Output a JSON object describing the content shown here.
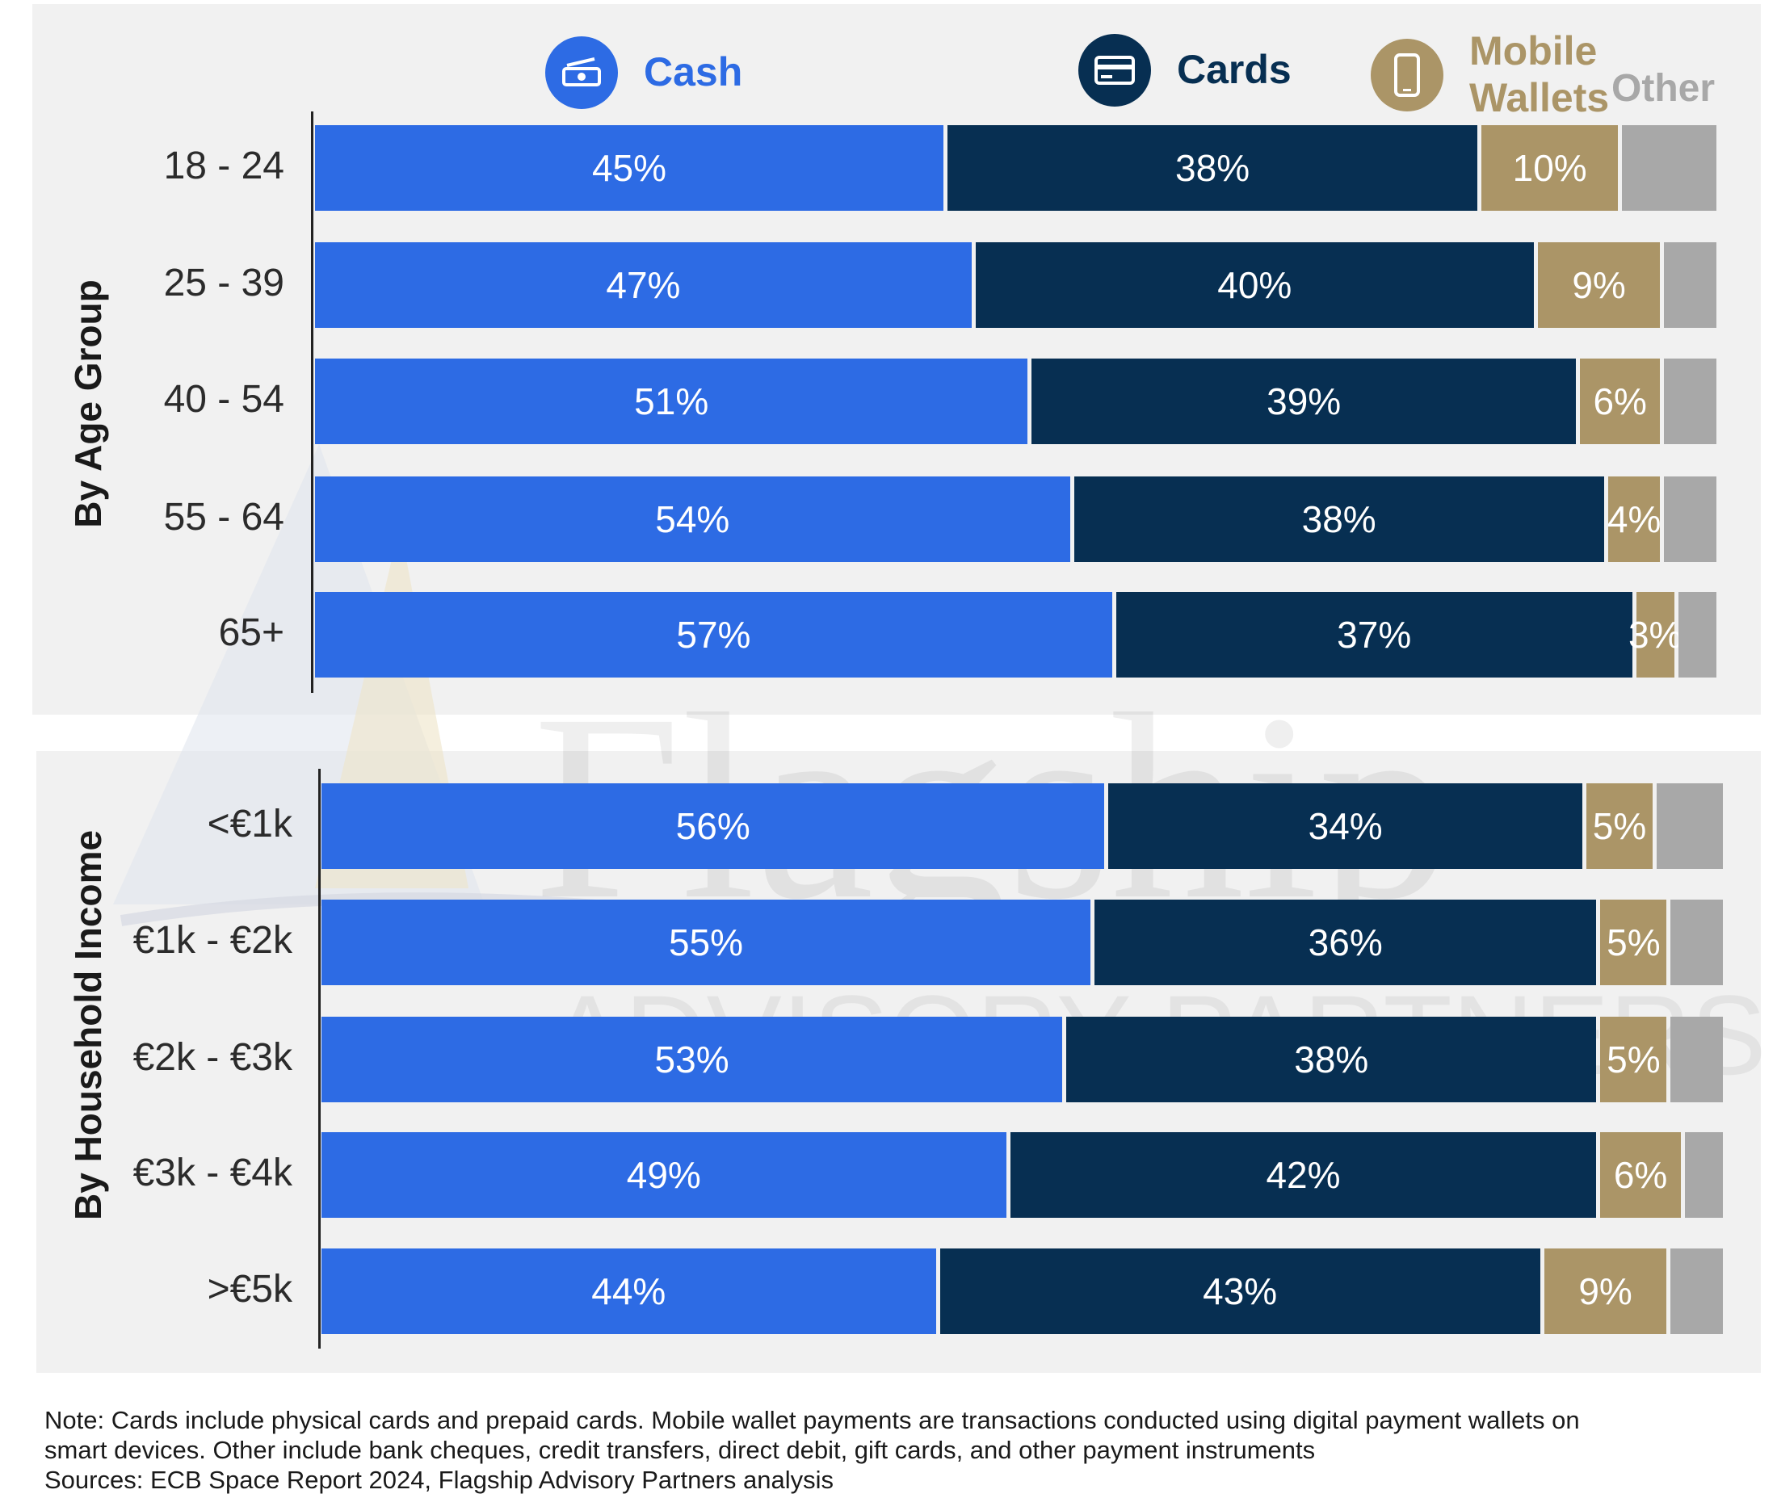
{
  "legend": {
    "cash": {
      "label": "Cash",
      "color": "#2d6be4",
      "icon": "cash-icon"
    },
    "cards": {
      "label": "Cards",
      "color": "#072f52",
      "icon": "card-icon"
    },
    "mobile": {
      "label_line1": "Mobile",
      "label_line2": "Wallets",
      "color": "#ab9567",
      "icon": "mobile-phone-icon"
    },
    "other": {
      "label": "Other",
      "color": "#a8a8a8"
    }
  },
  "watermark": {
    "line1": "Flagship",
    "line2": "ADVISORY PARTNERS"
  },
  "chart_data": [
    {
      "type": "bar",
      "orientation": "horizontal",
      "stacked": true,
      "group_label": "By Age Group",
      "categories": [
        "18 - 24",
        "25 - 39",
        "40 - 54",
        "55 - 64",
        "65+"
      ],
      "series": [
        {
          "name": "Cash",
          "values": [
            45,
            47,
            51,
            54,
            57
          ],
          "labels": [
            "45%",
            "47%",
            "51%",
            "54%",
            "57%"
          ]
        },
        {
          "name": "Cards",
          "values": [
            38,
            40,
            39,
            38,
            37
          ],
          "labels": [
            "38%",
            "40%",
            "39%",
            "38%",
            "37%"
          ]
        },
        {
          "name": "Mobile Wallets",
          "values": [
            10,
            9,
            6,
            4,
            3
          ],
          "labels": [
            "10%",
            "9%",
            "6%",
            "4%",
            "3%"
          ]
        },
        {
          "name": "Other",
          "values": [
            7,
            4,
            4,
            4,
            3
          ],
          "labels": [
            "",
            "",
            "",
            "",
            ""
          ]
        }
      ],
      "xlim": [
        0,
        100
      ]
    },
    {
      "type": "bar",
      "orientation": "horizontal",
      "stacked": true,
      "group_label": "By Household Income",
      "categories": [
        "<€1k",
        "€1k - €2k",
        "€2k - €3k",
        "€3k - €4k",
        ">€5k"
      ],
      "series": [
        {
          "name": "Cash",
          "values": [
            56,
            55,
            53,
            49,
            44
          ],
          "labels": [
            "56%",
            "55%",
            "53%",
            "49%",
            "44%"
          ]
        },
        {
          "name": "Cards",
          "values": [
            34,
            36,
            38,
            42,
            43
          ],
          "labels": [
            "34%",
            "36%",
            "38%",
            "42%",
            "43%"
          ]
        },
        {
          "name": "Mobile Wallets",
          "values": [
            5,
            5,
            5,
            6,
            9
          ],
          "labels": [
            "5%",
            "5%",
            "5%",
            "6%",
            "9%"
          ]
        },
        {
          "name": "Other",
          "values": [
            5,
            4,
            4,
            3,
            4
          ],
          "labels": [
            "",
            "",
            "",
            "",
            ""
          ]
        }
      ],
      "xlim": [
        0,
        100
      ]
    }
  ],
  "note": {
    "line1": "Note: Cards include physical cards and prepaid cards. Mobile wallet payments are transactions conducted using digital payment wallets on",
    "line2": "smart devices. Other include bank cheques, credit transfers, direct debit, gift cards, and other payment instruments",
    "line3": "Sources: ECB Space Report 2024, Flagship Advisory Partners analysis"
  }
}
